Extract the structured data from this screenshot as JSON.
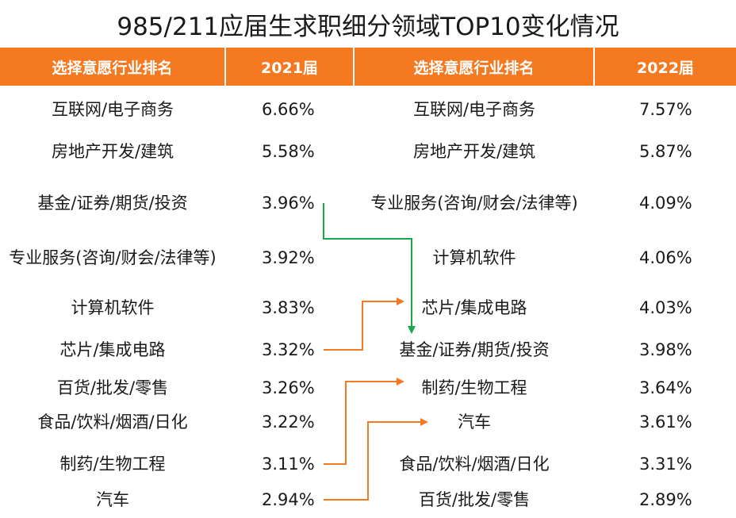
{
  "title": "985/211应届生求职细分领域TOP10变化情况",
  "headers": {
    "left_name": "选择意愿行业排名",
    "left_year": "2021届",
    "right_name": "选择意愿行业排名",
    "right_year": "2022届"
  },
  "chart_data": {
    "type": "table",
    "left": [
      {
        "name": "互联网/电子商务",
        "value": "6.66%"
      },
      {
        "name": "房地产开发/建筑",
        "value": "5.58%"
      },
      {
        "name": "基金/证券/期货/投资",
        "value": "3.96%"
      },
      {
        "name": "专业服务(咨询/财会/法律等)",
        "value": "3.92%"
      },
      {
        "name": "计算机软件",
        "value": "3.83%"
      },
      {
        "name": "芯片/集成电路",
        "value": "3.32%"
      },
      {
        "name": "百货/批发/零售",
        "value": "3.26%"
      },
      {
        "name": "食品/饮料/烟酒/日化",
        "value": "3.22%"
      },
      {
        "name": "制药/生物工程",
        "value": "3.11%"
      },
      {
        "name": "汽车",
        "value": "2.94%"
      }
    ],
    "right": [
      {
        "name": "互联网/电子商务",
        "value": "7.57%"
      },
      {
        "name": "房地产开发/建筑",
        "value": "5.87%"
      },
      {
        "name": "专业服务(咨询/财会/法律等)",
        "value": "4.09%"
      },
      {
        "name": "计算机软件",
        "value": "4.06%"
      },
      {
        "name": "芯片/集成电路",
        "value": "4.03%"
      },
      {
        "name": "基金/证券/期货/投资",
        "value": "3.98%"
      },
      {
        "name": "制药/生物工程",
        "value": "3.64%"
      },
      {
        "name": "汽车",
        "value": "3.61%"
      },
      {
        "name": "食品/饮料/烟酒/日化",
        "value": "3.31%"
      },
      {
        "name": "百货/批发/零售",
        "value": "2.89%"
      }
    ],
    "rank_changes": [
      {
        "from_rank": 3,
        "to_rank": 6,
        "color": "#1aa84b"
      },
      {
        "from_rank": 6,
        "to_rank": 5,
        "color": "#f47920"
      },
      {
        "from_rank": 9,
        "to_rank": 7,
        "color": "#f47920"
      },
      {
        "from_rank": 10,
        "to_rank": 8,
        "color": "#f47920"
      }
    ]
  },
  "colors": {
    "header_bg": "#f47920",
    "header_text": "#ffffff",
    "arrow_up": "#f47920",
    "arrow_down": "#1aa84b"
  }
}
